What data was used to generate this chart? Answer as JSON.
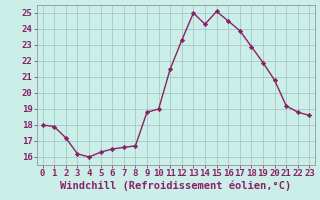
{
  "x": [
    0,
    1,
    2,
    3,
    4,
    5,
    6,
    7,
    8,
    9,
    10,
    11,
    12,
    13,
    14,
    15,
    16,
    17,
    18,
    19,
    20,
    21,
    22,
    23
  ],
  "y": [
    18.0,
    17.9,
    17.2,
    16.2,
    16.0,
    16.3,
    16.5,
    16.6,
    16.7,
    18.8,
    19.0,
    21.5,
    23.3,
    25.0,
    24.3,
    25.1,
    24.5,
    23.9,
    22.9,
    21.9,
    20.8,
    19.2,
    18.8,
    18.6
  ],
  "line_color": "#882266",
  "marker": "D",
  "marker_size": 2.2,
  "bg_color": "#cceee8",
  "grid_color": "#aacccc",
  "xlabel": "Windchill (Refroidissement éolien,°C)",
  "xlabel_fontsize": 7.5,
  "ylim": [
    15.5,
    25.5
  ],
  "xlim": [
    -0.5,
    23.5
  ],
  "yticks": [
    16,
    17,
    18,
    19,
    20,
    21,
    22,
    23,
    24,
    25
  ],
  "xticks": [
    0,
    1,
    2,
    3,
    4,
    5,
    6,
    7,
    8,
    9,
    10,
    11,
    12,
    13,
    14,
    15,
    16,
    17,
    18,
    19,
    20,
    21,
    22,
    23
  ],
  "tick_fontsize": 6.5,
  "line_width": 1.0,
  "spine_color": "#888888"
}
